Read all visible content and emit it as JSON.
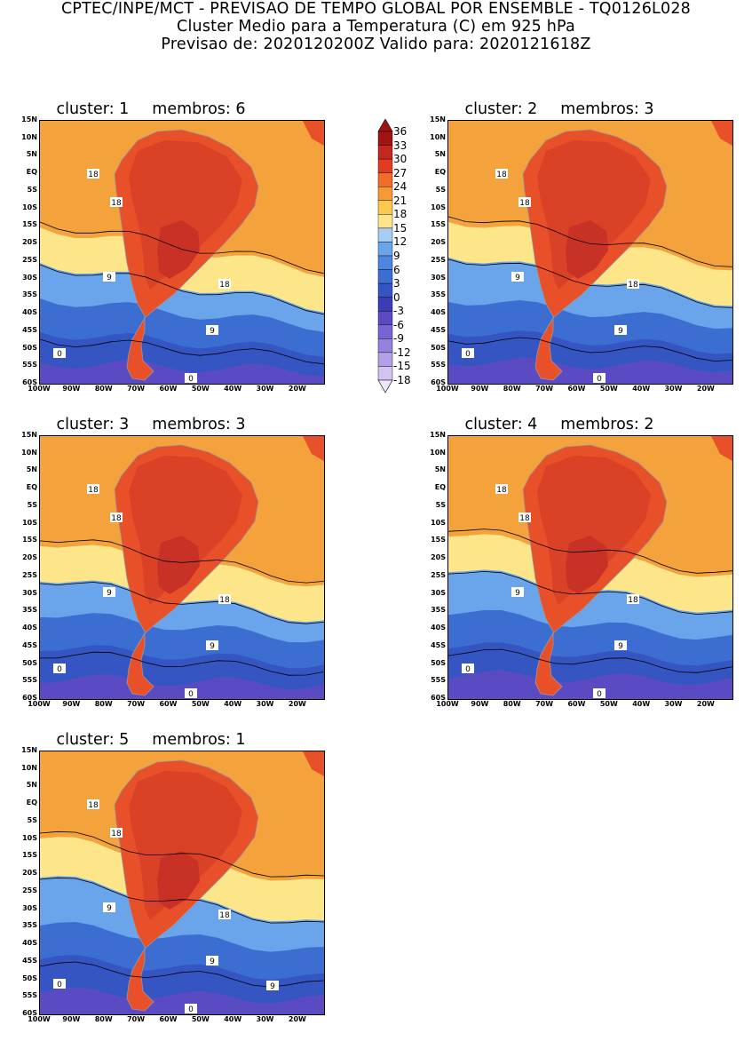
{
  "header": {
    "line1": "CPTEC/INPE/MCT - PREVISAO DE TEMPO GLOBAL POR ENSEMBLE - TQ0126L028",
    "line2": "Cluster Medio para a Temperatura (C) em 925 hPa",
    "line3": "Previsao de: 2020120200Z   Valido para: 2020121618Z"
  },
  "axes": {
    "y_ticks": [
      "15N",
      "10N",
      "5N",
      "EQ",
      "5S",
      "10S",
      "15S",
      "20S",
      "25S",
      "30S",
      "35S",
      "40S",
      "45S",
      "50S",
      "55S",
      "60S"
    ],
    "x_ticks": [
      "100W",
      "90W",
      "80W",
      "70W",
      "60W",
      "50W",
      "40W",
      "30W",
      "20W"
    ]
  },
  "panels": [
    {
      "cluster_label": "cluster: 1",
      "members_label": "membros: 6",
      "labels": [
        "18",
        "18",
        "9",
        "18",
        "9",
        "0",
        "0"
      ]
    },
    {
      "cluster_label": "cluster: 2",
      "members_label": "membros: 3",
      "labels": [
        "18",
        "18",
        "9",
        "18",
        "9",
        "0",
        "0"
      ]
    },
    {
      "cluster_label": "cluster: 3",
      "members_label": "membros: 3",
      "labels": [
        "18",
        "18",
        "9",
        "18",
        "9",
        "0",
        "0"
      ]
    },
    {
      "cluster_label": "cluster: 4",
      "members_label": "membros: 2",
      "labels": [
        "18",
        "18",
        "9",
        "18",
        "9",
        "0",
        "0"
      ]
    },
    {
      "cluster_label": "cluster: 5",
      "members_label": "membros: 1",
      "labels": [
        "18",
        "18",
        "9",
        "18",
        "9",
        "0",
        "0",
        "9"
      ]
    }
  ],
  "colorbar": {
    "labels": [
      "36",
      "33",
      "30",
      "27",
      "24",
      "21",
      "18",
      "15",
      "12",
      "9",
      "6",
      "3",
      "0",
      "-3",
      "-6",
      "-9",
      "-12",
      "-15",
      "-18"
    ],
    "colors": [
      "#a01414",
      "#c22820",
      "#e13c23",
      "#f06c28",
      "#f59a35",
      "#fbc850",
      "#fde58a",
      "#a6cdf5",
      "#6aa5eb",
      "#4b87e1",
      "#3c6ed2",
      "#3555c3",
      "#3c3cb4",
      "#5a4bc3",
      "#7864d2",
      "#9682dc",
      "#b4a0e6",
      "#d2c3f0"
    ]
  },
  "map_colors": {
    "ocean_warm": "#f4a23c",
    "land_hot": "#e8502a",
    "land_hottest": "#c83226",
    "cool_yellow": "#fde58a",
    "cool_blue1": "#6aa5eb",
    "cool_blue2": "#3c6ed2",
    "cool_blue3": "#3555c3",
    "cold_purple": "#5a4bc3"
  }
}
